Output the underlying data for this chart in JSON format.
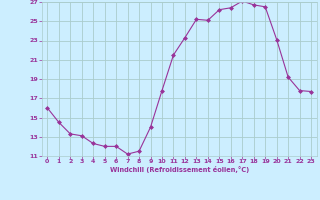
{
  "x": [
    0,
    1,
    2,
    3,
    4,
    5,
    6,
    7,
    8,
    9,
    10,
    11,
    12,
    13,
    14,
    15,
    16,
    17,
    18,
    19,
    20,
    21,
    22,
    23
  ],
  "y": [
    16.0,
    14.5,
    13.3,
    13.1,
    12.3,
    12.0,
    12.0,
    11.2,
    11.5,
    14.0,
    17.8,
    21.5,
    23.3,
    25.2,
    25.1,
    26.2,
    26.4,
    27.1,
    26.7,
    26.5,
    23.1,
    19.2,
    17.8,
    17.7
  ],
  "line_color": "#993399",
  "marker": "D",
  "marker_size": 2.0,
  "bg_color": "#cceeff",
  "grid_color": "#aacccc",
  "xlabel": "Windchill (Refroidissement éolien,°C)",
  "xlabel_color": "#993399",
  "tick_color": "#993399",
  "ylim": [
    11,
    27
  ],
  "xlim": [
    -0.5,
    23.5
  ],
  "yticks": [
    11,
    13,
    15,
    17,
    19,
    21,
    23,
    25,
    27
  ],
  "xticks": [
    0,
    1,
    2,
    3,
    4,
    5,
    6,
    7,
    8,
    9,
    10,
    11,
    12,
    13,
    14,
    15,
    16,
    17,
    18,
    19,
    20,
    21,
    22,
    23
  ]
}
